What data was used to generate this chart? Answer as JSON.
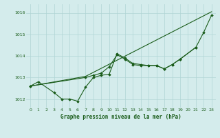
{
  "background_color": "#d4ecec",
  "grid_color": "#b0d4d4",
  "line_color": "#1a5c1a",
  "xlabel": "Graphe pression niveau de la mer (hPa)",
  "ylim": [
    1011.6,
    1016.4
  ],
  "xlim": [
    -0.5,
    23.5
  ],
  "yticks": [
    1012,
    1013,
    1014,
    1015,
    1016
  ],
  "xticks": [
    0,
    1,
    2,
    3,
    4,
    5,
    6,
    7,
    8,
    9,
    10,
    11,
    12,
    13,
    14,
    15,
    16,
    17,
    18,
    19,
    20,
    21,
    22,
    23
  ],
  "series1_x": [
    0,
    1,
    3,
    4,
    5,
    6,
    7,
    8,
    9,
    10,
    11,
    12,
    13,
    14,
    15,
    16,
    17,
    18,
    19,
    21,
    22,
    23
  ],
  "series1_y": [
    1012.6,
    1012.8,
    1012.3,
    1012.0,
    1012.0,
    1011.9,
    1012.55,
    1013.0,
    1013.1,
    1013.15,
    1014.1,
    1013.9,
    1013.65,
    1013.6,
    1013.55,
    1013.55,
    1013.4,
    1013.6,
    1013.85,
    1014.4,
    1015.1,
    1015.9
  ],
  "series2_x": [
    0,
    7,
    23
  ],
  "series2_y": [
    1012.6,
    1013.05,
    1016.05
  ],
  "series3_x": [
    0,
    7,
    8,
    9,
    10,
    11,
    12,
    13,
    14,
    15,
    16,
    17,
    18,
    19,
    21
  ],
  "series3_y": [
    1012.6,
    1013.0,
    1013.1,
    1013.2,
    1013.5,
    1014.05,
    1013.85,
    1013.6,
    1013.55,
    1013.55,
    1013.55,
    1013.4,
    1013.6,
    1013.85,
    1014.4
  ]
}
